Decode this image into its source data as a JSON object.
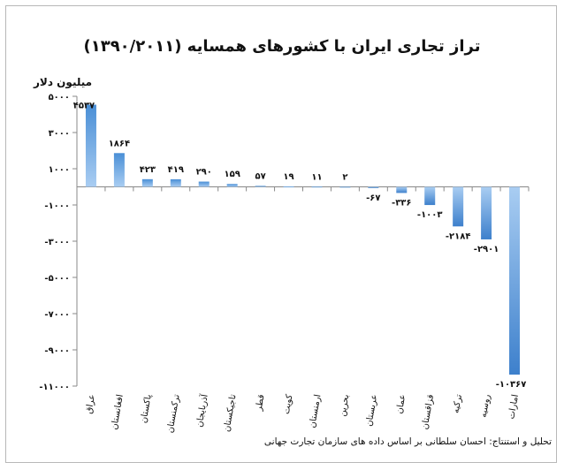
{
  "chart_data": {
    "type": "bar",
    "title": "تراز تجاری ایران با کشورهای همسایه (۱۳۹۰/۲۰۱۱)",
    "ylabel": "میلیون دلار",
    "xlabel": "",
    "ylim": [
      -11000,
      5000
    ],
    "yticks": [
      5000,
      3000,
      1000,
      -1000,
      -3000,
      -5000,
      -7000,
      -9000,
      -11000
    ],
    "ytick_labels": [
      "۵۰۰۰",
      "۳۰۰۰",
      "۱۰۰۰",
      "-۱۰۰۰",
      "-۳۰۰۰",
      "-۵۰۰۰",
      "-۷۰۰۰",
      "-۹۰۰۰",
      "-۱۱۰۰۰"
    ],
    "categories": [
      "عراق",
      "افغانستان",
      "پاکستان",
      "ترکمنستان",
      "آذربایجان",
      "تاجیکستان",
      "قطر",
      "کویت",
      "ارمنستان",
      "بحرین",
      "عربستان",
      "عمان",
      "قزاقستان",
      "ترکیه",
      "روسیه",
      "امارات"
    ],
    "values": [
      4537,
      1864,
      423,
      419,
      290,
      159,
      57,
      19,
      11,
      2,
      -67,
      -336,
      -1003,
      -2184,
      -2901,
      -10367
    ],
    "data_labels": [
      "۴۵۳۷",
      "۱۸۶۴",
      "۴۲۳",
      "۴۱۹",
      "۲۹۰",
      "۱۵۹",
      "۵۷",
      "۱۹",
      "۱۱",
      "۲",
      "-۶۷",
      "-۳۳۶",
      "-۱۰۰۳",
      "-۲۱۸۴",
      "-۲۹۰۱",
      "-۱۰۳۶۷"
    ],
    "grid": false,
    "bar_color": "#4a8fd6"
  },
  "source_note": "تحلیل و استنتاج: احسان سلطانی بر اساس داده های سازمان تجارت جهانی"
}
